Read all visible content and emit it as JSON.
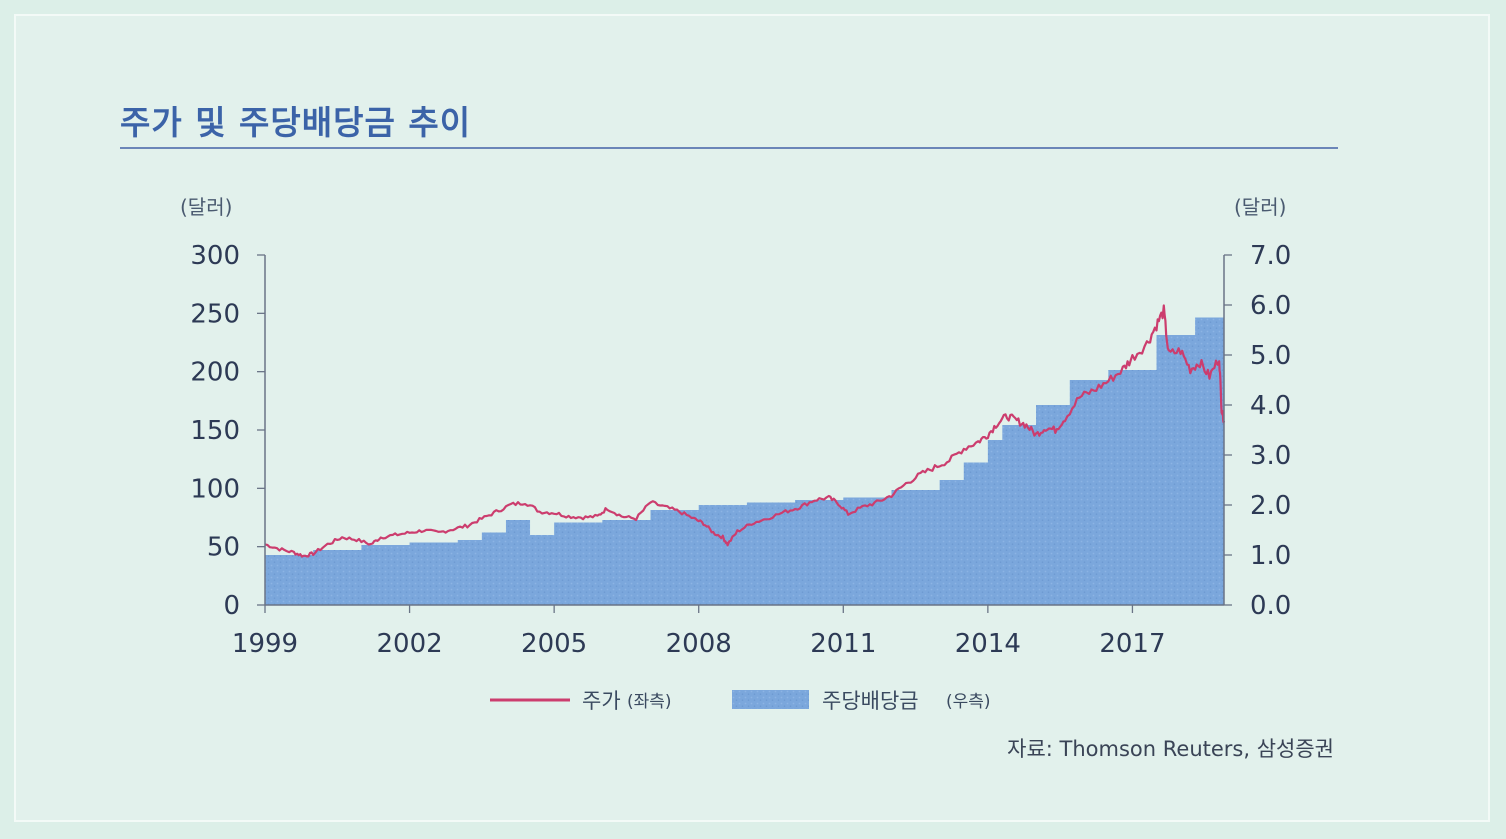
{
  "title": "주가 및 주당배당금 추이",
  "source": "자료: Thomson Reuters, 삼성증권",
  "colors": {
    "price_line": "#cc3d6e",
    "dividend_fill": "#7ba7dc",
    "title": "#3b63a8"
  },
  "chart_data": {
    "type": "line+area",
    "left_unit": "(달러)",
    "right_unit": "(달러)",
    "y_left": {
      "ticks": [
        "300",
        "250",
        "200",
        "150",
        "100",
        "50",
        "0"
      ],
      "range": [
        0,
        300
      ]
    },
    "y_right": {
      "ticks": [
        "7.0",
        "6.0",
        "5.0",
        "4.0",
        "3.0",
        "2.0",
        "1.0",
        "0.0"
      ],
      "range": [
        0,
        7
      ]
    },
    "x_ticks": [
      "1999",
      "2002",
      "2005",
      "2008",
      "2011",
      "2014",
      "2017"
    ],
    "x_range": [
      1999,
      2018.9
    ],
    "legend": [
      {
        "label": "주가",
        "sub": "(좌측)",
        "kind": "line"
      },
      {
        "label": "주당배당금",
        "sub": "(우측)",
        "kind": "area"
      }
    ],
    "series": [
      {
        "name": "주가",
        "axis": "left",
        "points": [
          [
            1999.0,
            52
          ],
          [
            1999.3,
            48
          ],
          [
            1999.6,
            45
          ],
          [
            1999.8,
            42
          ],
          [
            2000.0,
            44
          ],
          [
            2000.3,
            52
          ],
          [
            2000.6,
            58
          ],
          [
            2000.9,
            56
          ],
          [
            2001.2,
            52
          ],
          [
            2001.4,
            58
          ],
          [
            2001.7,
            60
          ],
          [
            2002.0,
            62
          ],
          [
            2002.3,
            64
          ],
          [
            2002.6,
            62
          ],
          [
            2002.9,
            65
          ],
          [
            2003.2,
            68
          ],
          [
            2003.5,
            74
          ],
          [
            2003.8,
            80
          ],
          [
            2004.1,
            86
          ],
          [
            2004.4,
            88
          ],
          [
            2004.7,
            80
          ],
          [
            2005.0,
            79
          ],
          [
            2005.3,
            76
          ],
          [
            2005.6,
            75
          ],
          [
            2005.9,
            76
          ],
          [
            2006.1,
            83
          ],
          [
            2006.4,
            76
          ],
          [
            2006.7,
            74
          ],
          [
            2007.0,
            88
          ],
          [
            2007.3,
            84
          ],
          [
            2007.6,
            80
          ],
          [
            2007.9,
            74
          ],
          [
            2008.1,
            70
          ],
          [
            2008.3,
            62
          ],
          [
            2008.5,
            58
          ],
          [
            2008.6,
            52
          ],
          [
            2008.8,
            63
          ],
          [
            2009.1,
            70
          ],
          [
            2009.4,
            74
          ],
          [
            2009.8,
            80
          ],
          [
            2010.1,
            84
          ],
          [
            2010.4,
            90
          ],
          [
            2010.7,
            92
          ],
          [
            2010.9,
            87
          ],
          [
            2011.1,
            78
          ],
          [
            2011.4,
            84
          ],
          [
            2011.7,
            88
          ],
          [
            2012.0,
            94
          ],
          [
            2012.3,
            104
          ],
          [
            2012.6,
            112
          ],
          [
            2012.9,
            118
          ],
          [
            2013.2,
            124
          ],
          [
            2013.5,
            134
          ],
          [
            2013.8,
            140
          ],
          [
            2014.0,
            146
          ],
          [
            2014.2,
            156
          ],
          [
            2014.4,
            162
          ],
          [
            2014.6,
            158
          ],
          [
            2014.8,
            154
          ],
          [
            2015.0,
            146
          ],
          [
            2015.2,
            152
          ],
          [
            2015.4,
            150
          ],
          [
            2015.6,
            160
          ],
          [
            2015.9,
            178
          ],
          [
            2016.2,
            184
          ],
          [
            2016.5,
            192
          ],
          [
            2016.8,
            202
          ],
          [
            2017.0,
            212
          ],
          [
            2017.3,
            224
          ],
          [
            2017.5,
            240
          ],
          [
            2017.65,
            252
          ],
          [
            2017.75,
            215
          ],
          [
            2018.0,
            218
          ],
          [
            2018.2,
            202
          ],
          [
            2018.4,
            208
          ],
          [
            2018.6,
            196
          ],
          [
            2018.8,
            212
          ],
          [
            2018.85,
            168
          ],
          [
            2018.9,
            158
          ]
        ]
      },
      {
        "name": "주당배당금",
        "axis": "right",
        "kind": "step-area",
        "steps": [
          [
            1999.0,
            1.0
          ],
          [
            2000.0,
            1.1
          ],
          [
            2001.0,
            1.2
          ],
          [
            2002.0,
            1.25
          ],
          [
            2003.0,
            1.3
          ],
          [
            2003.5,
            1.45
          ],
          [
            2004.0,
            1.7
          ],
          [
            2004.5,
            1.4
          ],
          [
            2005.0,
            1.65
          ],
          [
            2006.0,
            1.7
          ],
          [
            2007.0,
            1.9
          ],
          [
            2008.0,
            2.0
          ],
          [
            2009.0,
            2.05
          ],
          [
            2010.0,
            2.1
          ],
          [
            2011.0,
            2.15
          ],
          [
            2012.0,
            2.3
          ],
          [
            2013.0,
            2.5
          ],
          [
            2013.5,
            2.85
          ],
          [
            2014.0,
            3.3
          ],
          [
            2014.3,
            3.6
          ],
          [
            2015.0,
            4.0
          ],
          [
            2015.7,
            4.5
          ],
          [
            2016.5,
            4.7
          ],
          [
            2017.5,
            5.4
          ],
          [
            2018.3,
            5.75
          ],
          [
            2018.9,
            5.75
          ]
        ]
      }
    ]
  }
}
